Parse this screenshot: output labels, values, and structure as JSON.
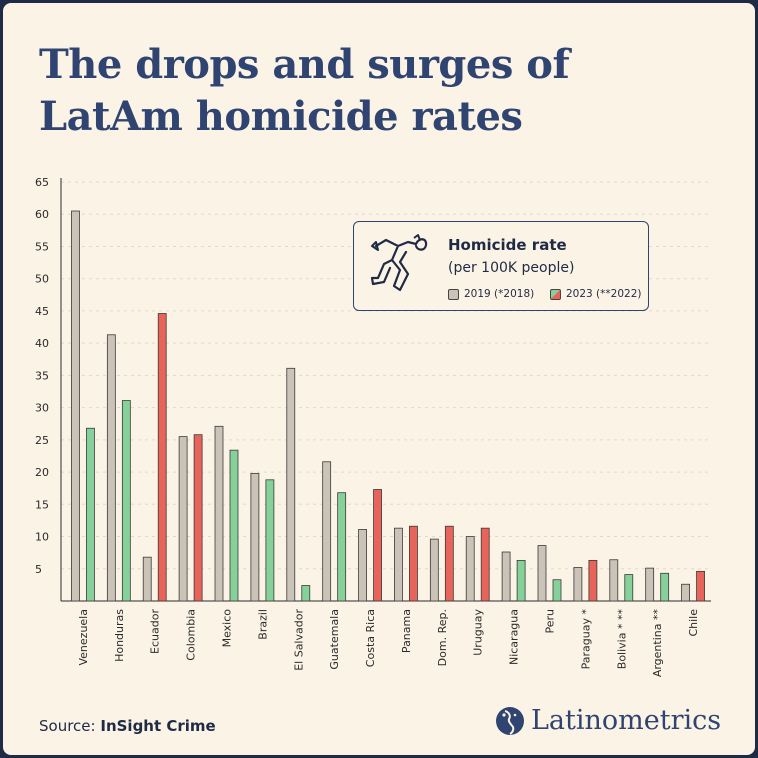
{
  "title": "The drops and surges of LatAm homicide rates",
  "legend": {
    "title": "Homicide rate",
    "subtitle": "(per 100K people)",
    "items": [
      {
        "label": "2019 (*2018)"
      },
      {
        "label": "2023 (**2022)"
      }
    ]
  },
  "source": {
    "prefix": "Source:",
    "name": "InSight Crime"
  },
  "brand": {
    "name": "Latinometrics"
  },
  "colors": {
    "background": "#fbf3e6",
    "frame": "#1f2a44",
    "title": "#2f4470",
    "bar_2019": "#cbc2b8",
    "bar_decrease": "#86d19a",
    "bar_increase": "#e8635a",
    "bar_outline": "#3a3a3a"
  },
  "chart_data": {
    "type": "bar",
    "categories": [
      "Venezuela",
      "Honduras",
      "Ecuador",
      "Colombia",
      "Mexico",
      "Brazil",
      "El Salvador",
      "Guatemala",
      "Costa Rica",
      "Panama",
      "Dom. Rep.",
      "Uruguay",
      "Nicaragua",
      "Peru",
      "Paraguay *",
      "Bolivia * **",
      "Argentina **",
      "Chile"
    ],
    "series": [
      {
        "name": "2019 (*2018)",
        "values": [
          60.5,
          41.3,
          6.8,
          25.5,
          27.1,
          19.8,
          36.1,
          21.6,
          11.1,
          11.3,
          9.6,
          10.0,
          7.6,
          8.6,
          5.2,
          6.4,
          5.1,
          2.6
        ]
      },
      {
        "name": "2023 (**2022)",
        "values": [
          26.8,
          31.1,
          44.6,
          25.8,
          23.4,
          18.8,
          2.4,
          16.8,
          17.3,
          11.6,
          11.6,
          11.3,
          6.3,
          3.3,
          6.3,
          4.1,
          4.3,
          4.6
        ]
      }
    ],
    "yticks": [
      5,
      10,
      15,
      20,
      25,
      30,
      35,
      40,
      45,
      50,
      55,
      60,
      65
    ],
    "ylim": [
      0,
      65
    ],
    "grid": true,
    "legend_position": "top-right"
  }
}
